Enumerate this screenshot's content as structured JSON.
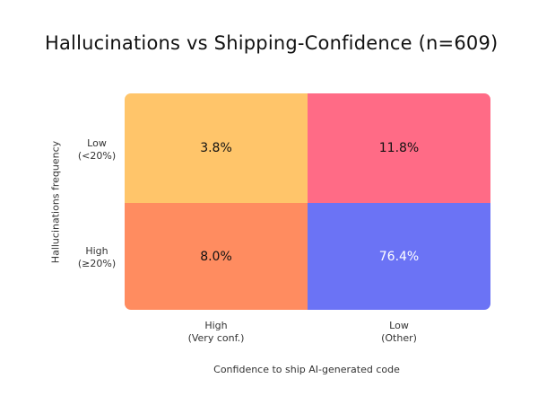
{
  "chart_data": {
    "type": "heatmap",
    "title": "Hallucinations vs Shipping-Confidence (n=609)",
    "xlabel": "Confidence to ship AI-generated code",
    "ylabel": "Hallucinations frequency",
    "x_categories": [
      {
        "line1": "High",
        "line2": "(Very conf.)"
      },
      {
        "line1": "Low",
        "line2": "(Other)"
      }
    ],
    "y_categories": [
      {
        "line1": "Low",
        "line2": "(<20%)"
      },
      {
        "line1": "High",
        "line2": "(≥20%)"
      }
    ],
    "values": [
      [
        3.8,
        11.8
      ],
      [
        8.0,
        76.4
      ]
    ],
    "value_labels": [
      [
        "3.8%",
        "11.8%"
      ],
      [
        "8.0%",
        "76.4%"
      ]
    ],
    "cell_colors": [
      [
        "#FFC56A",
        "#FF6B86"
      ],
      [
        "#FF8C60",
        "#6B73F5"
      ]
    ],
    "label_colors": [
      [
        "#111111",
        "#111111"
      ],
      [
        "#111111",
        "#ffffff"
      ]
    ]
  }
}
